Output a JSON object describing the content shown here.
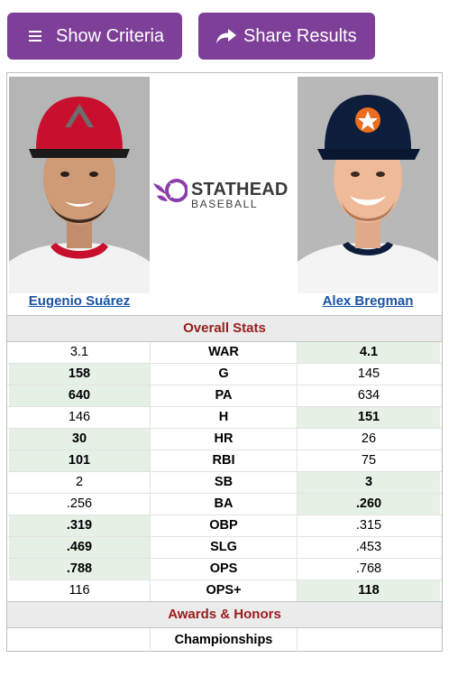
{
  "toolbar": {
    "show_criteria_label": "Show Criteria",
    "share_results_label": "Share Results",
    "button_color": "#7e3f98"
  },
  "logo": {
    "word1": "STATHEAD",
    "word2": "BASEBALL",
    "accent_color": "#8b3fa8"
  },
  "players": {
    "left": {
      "name": "Eugenio Suárez",
      "cap_color": "#c8102e"
    },
    "right": {
      "name": "Alex Bregman",
      "cap_color": "#0c1e3c"
    }
  },
  "sections": {
    "overall": "Overall Stats",
    "awards": "Awards & Honors"
  },
  "stats": [
    {
      "stat": "WAR",
      "left": "3.1",
      "right": "4.1",
      "winner": "right"
    },
    {
      "stat": "G",
      "left": "158",
      "right": "145",
      "winner": "left"
    },
    {
      "stat": "PA",
      "left": "640",
      "right": "634",
      "winner": "left"
    },
    {
      "stat": "H",
      "left": "146",
      "right": "151",
      "winner": "right"
    },
    {
      "stat": "HR",
      "left": "30",
      "right": "26",
      "winner": "left"
    },
    {
      "stat": "RBI",
      "left": "101",
      "right": "75",
      "winner": "left"
    },
    {
      "stat": "SB",
      "left": "2",
      "right": "3",
      "winner": "right"
    },
    {
      "stat": "BA",
      "left": ".256",
      "right": ".260",
      "winner": "right"
    },
    {
      "stat": "OBP",
      "left": ".319",
      "right": ".315",
      "winner": "left"
    },
    {
      "stat": "SLG",
      "left": ".469",
      "right": ".453",
      "winner": "left"
    },
    {
      "stat": "OPS",
      "left": ".788",
      "right": ".768",
      "winner": "left"
    },
    {
      "stat": "OPS+",
      "left": "116",
      "right": "118",
      "winner": "right"
    }
  ],
  "awards": {
    "championships_label": "Championships",
    "championships_left": "",
    "championships_right": ""
  }
}
